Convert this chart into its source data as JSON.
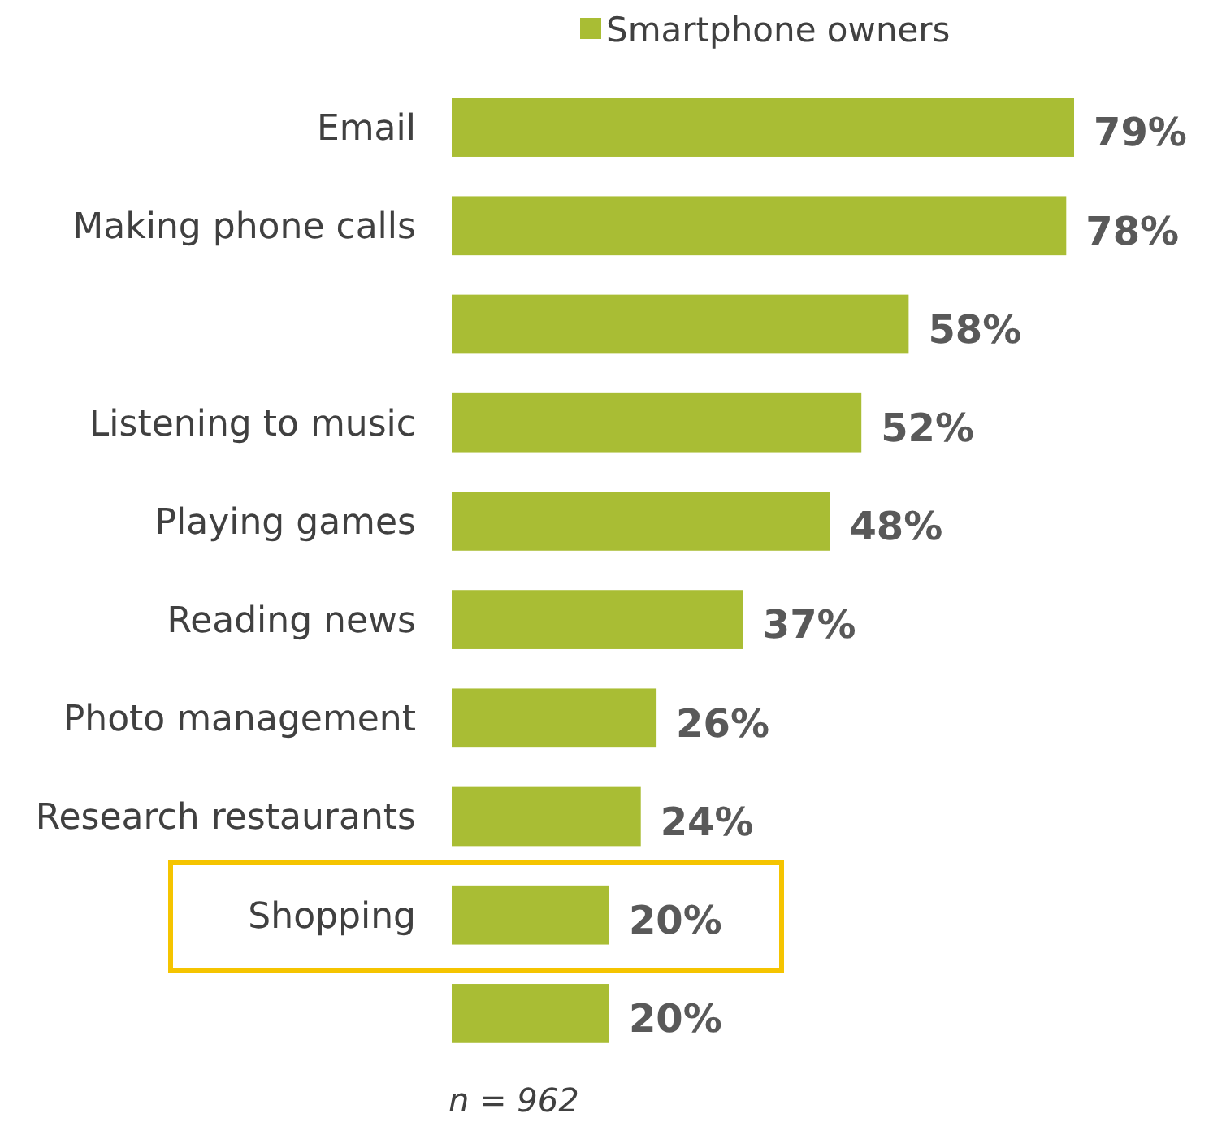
{
  "chart_data": {
    "type": "bar",
    "orientation": "horizontal",
    "categories": [
      "Email",
      "Making phone calls",
      null,
      "Listening to music",
      "Playing games",
      "Reading news",
      "Photo management",
      "Research restaurants",
      "Shopping",
      null
    ],
    "series": [
      {
        "name": "Smartphone owners",
        "color": "#a9bd34",
        "values": [
          79,
          78,
          58,
          52,
          48,
          37,
          26,
          24,
          20,
          20
        ],
        "value_labels": [
          "79%",
          "78%",
          "58%",
          "52%",
          "48%",
          "37%",
          "26%",
          "24%",
          "20%",
          "20%"
        ]
      }
    ],
    "legend": "top",
    "annotations": [
      "n = 962"
    ]
  }
}
